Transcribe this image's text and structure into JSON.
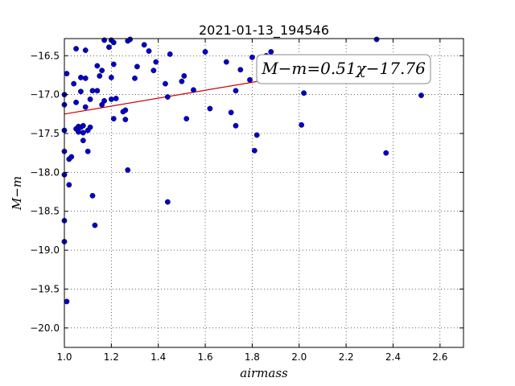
{
  "chart_data": {
    "type": "scatter",
    "title": "2021-01-13_194546",
    "xlabel": "airmass",
    "ylabel": "M−m",
    "xlim": [
      1.0,
      2.7
    ],
    "ylim": [
      -20.25,
      -16.28
    ],
    "grid": true,
    "x_ticks": [
      1.0,
      1.2,
      1.4,
      1.6,
      1.8,
      2.0,
      2.2,
      2.4,
      2.6
    ],
    "x_tick_labels": [
      "1.0",
      "1.2",
      "1.4",
      "1.6",
      "1.8",
      "2.0",
      "2.2",
      "2.4",
      "2.6"
    ],
    "y_ticks": [
      -16.5,
      -17.0,
      -17.5,
      -18.0,
      -18.5,
      -19.0,
      -19.5,
      -20.0
    ],
    "y_tick_labels": [
      "−16.5",
      "−17.0",
      "−17.5",
      "−18.0",
      "−18.5",
      "−19.0",
      "−19.5",
      "−20.0"
    ],
    "marker_color": "#0000cc",
    "fit_color": "#cc0000",
    "fit": {
      "slope": 0.51,
      "intercept": -17.76,
      "x_range": [
        1.0,
        1.82
      ]
    },
    "annotation": "M−m=0.51χ−17.76",
    "points": [
      [
        1.0,
        -17.0
      ],
      [
        1.0,
        -17.13
      ],
      [
        1.0,
        -17.46
      ],
      [
        1.0,
        -17.73
      ],
      [
        1.0,
        -18.03
      ],
      [
        1.0,
        -18.62
      ],
      [
        1.0,
        -18.89
      ],
      [
        1.01,
        -19.66
      ],
      [
        1.01,
        -16.73
      ],
      [
        1.02,
        -17.83
      ],
      [
        1.02,
        -18.16
      ],
      [
        1.03,
        -17.8
      ],
      [
        1.04,
        -16.86
      ],
      [
        1.05,
        -16.41
      ],
      [
        1.05,
        -17.1
      ],
      [
        1.05,
        -17.44
      ],
      [
        1.06,
        -17.41
      ],
      [
        1.06,
        -17.48
      ],
      [
        1.07,
        -17.42
      ],
      [
        1.07,
        -16.96
      ],
      [
        1.07,
        -16.78
      ],
      [
        1.08,
        -17.4
      ],
      [
        1.08,
        -17.49
      ],
      [
        1.08,
        -17.59
      ],
      [
        1.09,
        -16.43
      ],
      [
        1.09,
        -16.79
      ],
      [
        1.09,
        -17.16
      ],
      [
        1.1,
        -17.46
      ],
      [
        1.1,
        -17.73
      ],
      [
        1.11,
        -17.42
      ],
      [
        1.11,
        -17.06
      ],
      [
        1.12,
        -16.95
      ],
      [
        1.12,
        -18.3
      ],
      [
        1.13,
        -18.68
      ],
      [
        1.14,
        -16.63
      ],
      [
        1.14,
        -16.95
      ],
      [
        1.15,
        -16.76
      ],
      [
        1.16,
        -16.69
      ],
      [
        1.16,
        -17.13
      ],
      [
        1.17,
        -16.3
      ],
      [
        1.17,
        -17.08
      ],
      [
        1.19,
        -16.39
      ],
      [
        1.2,
        -16.3
      ],
      [
        1.2,
        -16.78
      ],
      [
        1.2,
        -17.06
      ],
      [
        1.21,
        -16.33
      ],
      [
        1.21,
        -16.61
      ],
      [
        1.21,
        -17.31
      ],
      [
        1.22,
        -17.05
      ],
      [
        1.25,
        -17.22
      ],
      [
        1.26,
        -17.32
      ],
      [
        1.26,
        -17.2
      ],
      [
        1.27,
        -16.31
      ],
      [
        1.27,
        -17.97
      ],
      [
        1.28,
        -16.29
      ],
      [
        1.3,
        -16.79
      ],
      [
        1.31,
        -16.64
      ],
      [
        1.34,
        -16.36
      ],
      [
        1.36,
        -16.44
      ],
      [
        1.38,
        -16.69
      ],
      [
        1.39,
        -16.58
      ],
      [
        1.43,
        -16.86
      ],
      [
        1.44,
        -17.03
      ],
      [
        1.44,
        -18.38
      ],
      [
        1.45,
        -16.48
      ],
      [
        1.5,
        -16.83
      ],
      [
        1.51,
        -16.76
      ],
      [
        1.52,
        -17.31
      ],
      [
        1.55,
        -16.94
      ],
      [
        1.6,
        -16.45
      ],
      [
        1.62,
        -17.18
      ],
      [
        1.69,
        -16.58
      ],
      [
        1.71,
        -17.23
      ],
      [
        1.73,
        -17.4
      ],
      [
        1.73,
        -16.95
      ],
      [
        1.75,
        -16.68
      ],
      [
        1.79,
        -16.81
      ],
      [
        1.8,
        -16.52
      ],
      [
        1.81,
        -17.72
      ],
      [
        1.82,
        -17.52
      ],
      [
        1.86,
        -16.5
      ],
      [
        1.88,
        -16.45
      ],
      [
        2.01,
        -17.39
      ],
      [
        2.02,
        -16.98
      ],
      [
        2.33,
        -16.29
      ],
      [
        2.37,
        -17.75
      ],
      [
        2.52,
        -17.01
      ]
    ]
  }
}
